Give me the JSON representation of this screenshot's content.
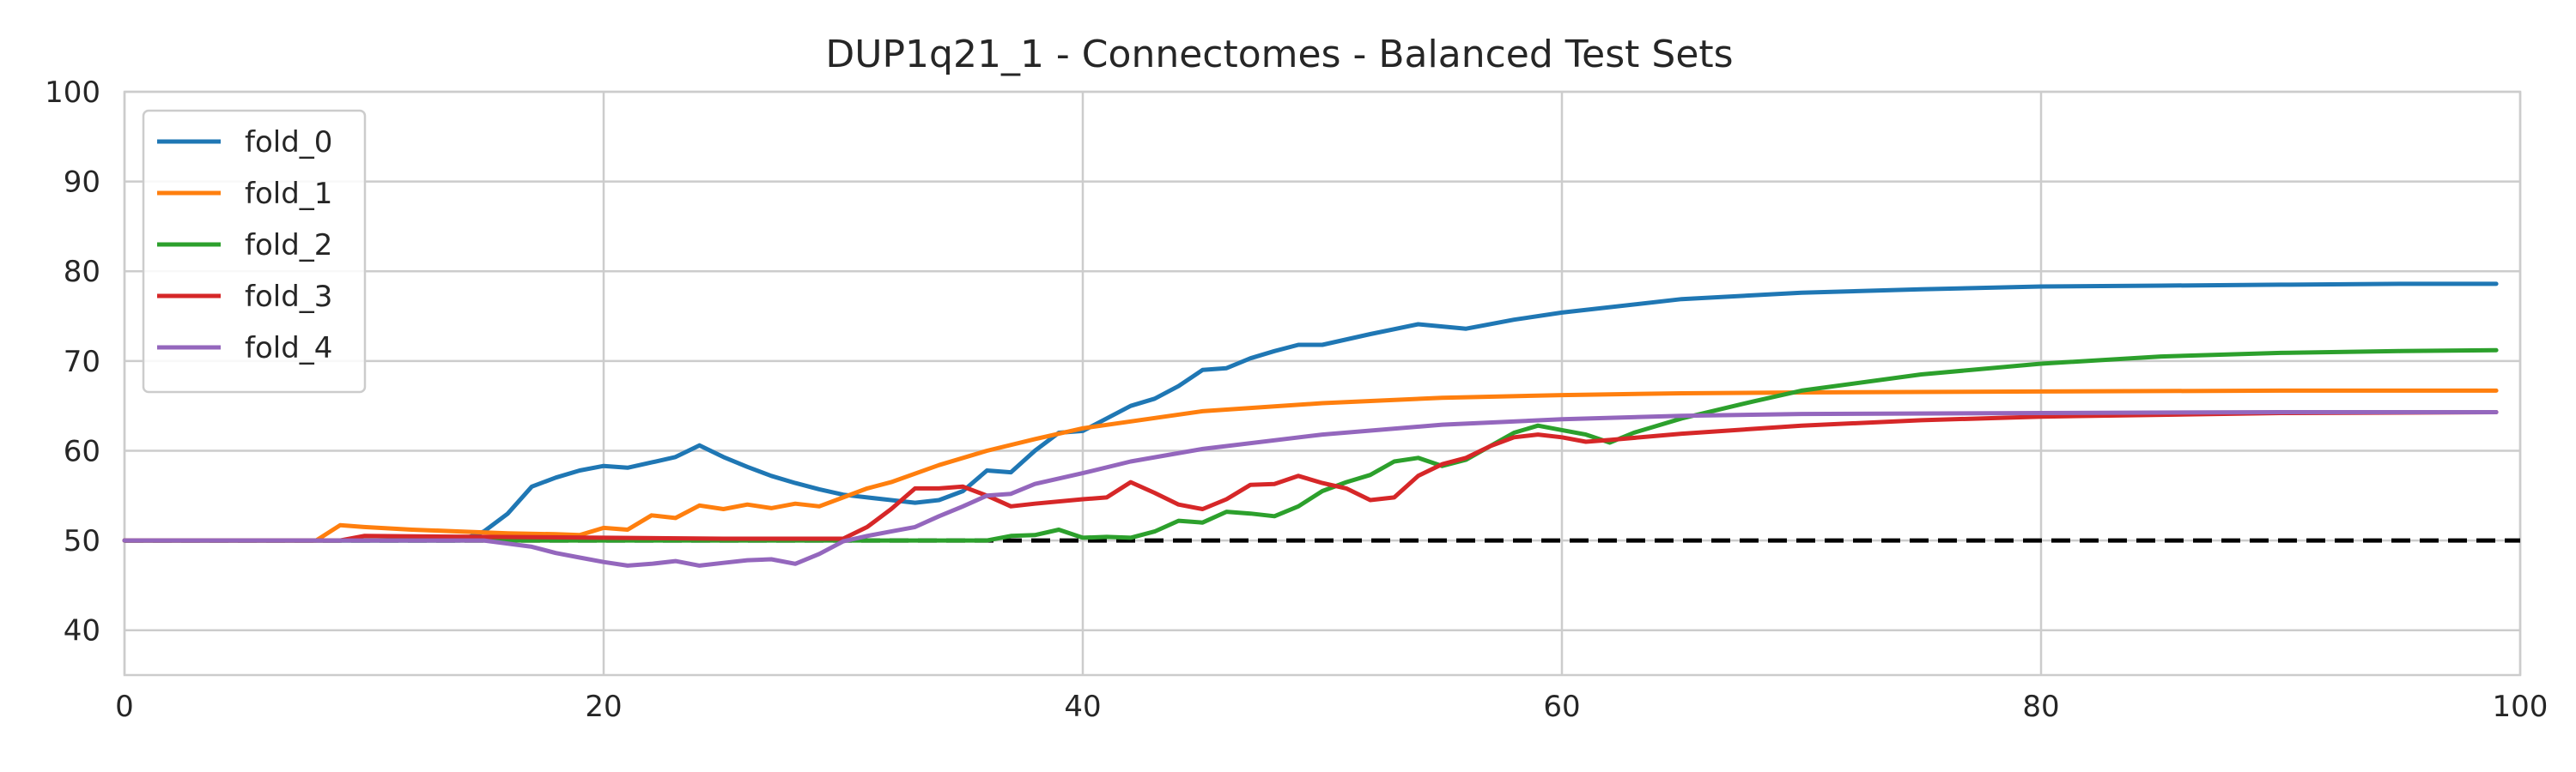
{
  "chart_data": {
    "type": "line",
    "title": "DUP1q21_1 - Connectomes - Balanced Test Sets",
    "xlabel": "",
    "ylabel": "",
    "xlim": [
      0,
      100
    ],
    "ylim": [
      35,
      100
    ],
    "xticks": [
      0,
      20,
      40,
      60,
      80,
      100
    ],
    "yticks": [
      40,
      50,
      60,
      70,
      80,
      90,
      100
    ],
    "grid": true,
    "legend_position": "top-left",
    "reference_line": {
      "y": 50,
      "style": "dashed",
      "color": "#000000"
    },
    "series": [
      {
        "name": "fold_0",
        "color": "#1f77b4",
        "points": [
          [
            0,
            50
          ],
          [
            14,
            50
          ],
          [
            15,
            51
          ],
          [
            16,
            53
          ],
          [
            17,
            56
          ],
          [
            18,
            57
          ],
          [
            19,
            57.8
          ],
          [
            20,
            58.3
          ],
          [
            21,
            58.1
          ],
          [
            22,
            58.7
          ],
          [
            23,
            59.3
          ],
          [
            24,
            60.6
          ],
          [
            25,
            59.3
          ],
          [
            26,
            58.2
          ],
          [
            27,
            57.2
          ],
          [
            28,
            56.4
          ],
          [
            29,
            55.7
          ],
          [
            30,
            55.1
          ],
          [
            31,
            54.8
          ],
          [
            32,
            54.5
          ],
          [
            33,
            54.2
          ],
          [
            34,
            54.5
          ],
          [
            35,
            55.5
          ],
          [
            36,
            57.8
          ],
          [
            37,
            57.6
          ],
          [
            38,
            60
          ],
          [
            39,
            62
          ],
          [
            40,
            62.2
          ],
          [
            41,
            63.6
          ],
          [
            42,
            65
          ],
          [
            43,
            65.8
          ],
          [
            44,
            67.2
          ],
          [
            45,
            69
          ],
          [
            46,
            69.2
          ],
          [
            47,
            70.3
          ],
          [
            48,
            71.1
          ],
          [
            49,
            71.8
          ],
          [
            50,
            71.8
          ],
          [
            52,
            73
          ],
          [
            54,
            74.1
          ],
          [
            56,
            73.6
          ],
          [
            58,
            74.6
          ],
          [
            60,
            75.4
          ],
          [
            65,
            76.9
          ],
          [
            70,
            77.6
          ],
          [
            75,
            78
          ],
          [
            80,
            78.3
          ],
          [
            85,
            78.4
          ],
          [
            90,
            78.5
          ],
          [
            95,
            78.6
          ],
          [
            99,
            78.6
          ]
        ]
      },
      {
        "name": "fold_1",
        "color": "#ff7f0e",
        "points": [
          [
            0,
            50
          ],
          [
            8,
            50
          ],
          [
            9,
            51.7
          ],
          [
            10,
            51.5
          ],
          [
            12,
            51.2
          ],
          [
            14,
            51
          ],
          [
            16,
            50.8
          ],
          [
            18,
            50.7
          ],
          [
            19,
            50.6
          ],
          [
            20,
            51.4
          ],
          [
            21,
            51.2
          ],
          [
            22,
            52.8
          ],
          [
            23,
            52.5
          ],
          [
            24,
            53.9
          ],
          [
            25,
            53.5
          ],
          [
            26,
            54
          ],
          [
            27,
            53.6
          ],
          [
            28,
            54.1
          ],
          [
            29,
            53.8
          ],
          [
            30,
            54.8
          ],
          [
            31,
            55.8
          ],
          [
            32,
            56.5
          ],
          [
            34,
            58.4
          ],
          [
            36,
            60
          ],
          [
            38,
            61.3
          ],
          [
            40,
            62.5
          ],
          [
            45,
            64.4
          ],
          [
            50,
            65.3
          ],
          [
            55,
            65.9
          ],
          [
            60,
            66.2
          ],
          [
            65,
            66.4
          ],
          [
            70,
            66.5
          ],
          [
            80,
            66.6
          ],
          [
            90,
            66.7
          ],
          [
            99,
            66.7
          ]
        ]
      },
      {
        "name": "fold_2",
        "color": "#2ca02c",
        "points": [
          [
            0,
            50
          ],
          [
            36,
            50
          ],
          [
            37,
            50.5
          ],
          [
            38,
            50.6
          ],
          [
            39,
            51.2
          ],
          [
            40,
            50.3
          ],
          [
            41,
            50.4
          ],
          [
            42,
            50.3
          ],
          [
            43,
            51
          ],
          [
            44,
            52.2
          ],
          [
            45,
            52
          ],
          [
            46,
            53.2
          ],
          [
            47,
            53
          ],
          [
            48,
            52.7
          ],
          [
            49,
            53.8
          ],
          [
            50,
            55.5
          ],
          [
            51,
            56.5
          ],
          [
            52,
            57.3
          ],
          [
            53,
            58.8
          ],
          [
            54,
            59.2
          ],
          [
            55,
            58.3
          ],
          [
            56,
            59
          ],
          [
            57,
            60.5
          ],
          [
            58,
            62
          ],
          [
            59,
            62.8
          ],
          [
            60,
            62.3
          ],
          [
            61,
            61.8
          ],
          [
            62,
            60.9
          ],
          [
            63,
            62
          ],
          [
            65,
            63.6
          ],
          [
            68,
            65.5
          ],
          [
            70,
            66.7
          ],
          [
            75,
            68.5
          ],
          [
            80,
            69.7
          ],
          [
            85,
            70.5
          ],
          [
            90,
            70.9
          ],
          [
            95,
            71.1
          ],
          [
            99,
            71.2
          ]
        ]
      },
      {
        "name": "fold_3",
        "color": "#d62728",
        "points": [
          [
            0,
            50
          ],
          [
            9,
            50
          ],
          [
            10,
            50.5
          ],
          [
            15,
            50.4
          ],
          [
            20,
            50.3
          ],
          [
            25,
            50.2
          ],
          [
            30,
            50.2
          ],
          [
            31,
            51.5
          ],
          [
            32,
            53.5
          ],
          [
            33,
            55.8
          ],
          [
            34,
            55.8
          ],
          [
            35,
            56
          ],
          [
            36,
            55
          ],
          [
            37,
            53.8
          ],
          [
            38,
            54.1
          ],
          [
            40,
            54.6
          ],
          [
            41,
            54.8
          ],
          [
            42,
            56.5
          ],
          [
            43,
            55.3
          ],
          [
            44,
            54
          ],
          [
            45,
            53.5
          ],
          [
            46,
            54.6
          ],
          [
            47,
            56.2
          ],
          [
            48,
            56.3
          ],
          [
            49,
            57.2
          ],
          [
            50,
            56.4
          ],
          [
            51,
            55.8
          ],
          [
            52,
            54.5
          ],
          [
            53,
            54.8
          ],
          [
            54,
            57.2
          ],
          [
            55,
            58.5
          ],
          [
            56,
            59.2
          ],
          [
            57,
            60.5
          ],
          [
            58,
            61.5
          ],
          [
            59,
            61.8
          ],
          [
            60,
            61.5
          ],
          [
            61,
            61
          ],
          [
            62,
            61.2
          ],
          [
            65,
            61.9
          ],
          [
            70,
            62.8
          ],
          [
            75,
            63.4
          ],
          [
            80,
            63.8
          ],
          [
            85,
            64
          ],
          [
            90,
            64.2
          ],
          [
            99,
            64.3
          ]
        ]
      },
      {
        "name": "fold_4",
        "color": "#9467bd",
        "points": [
          [
            0,
            50
          ],
          [
            15,
            50
          ],
          [
            17,
            49.3
          ],
          [
            18,
            48.6
          ],
          [
            19,
            48.1
          ],
          [
            20,
            47.6
          ],
          [
            21,
            47.2
          ],
          [
            22,
            47.4
          ],
          [
            23,
            47.7
          ],
          [
            24,
            47.2
          ],
          [
            25,
            47.5
          ],
          [
            26,
            47.8
          ],
          [
            27,
            47.9
          ],
          [
            28,
            47.4
          ],
          [
            29,
            48.5
          ],
          [
            30,
            49.9
          ],
          [
            31,
            50.5
          ],
          [
            32,
            51
          ],
          [
            33,
            51.5
          ],
          [
            34,
            52.7
          ],
          [
            35,
            53.8
          ],
          [
            36,
            55
          ],
          [
            37,
            55.2
          ],
          [
            38,
            56.3
          ],
          [
            40,
            57.5
          ],
          [
            42,
            58.8
          ],
          [
            45,
            60.2
          ],
          [
            50,
            61.8
          ],
          [
            55,
            62.9
          ],
          [
            60,
            63.5
          ],
          [
            65,
            63.9
          ],
          [
            70,
            64.1
          ],
          [
            80,
            64.2
          ],
          [
            90,
            64.3
          ],
          [
            99,
            64.3
          ]
        ]
      }
    ]
  }
}
